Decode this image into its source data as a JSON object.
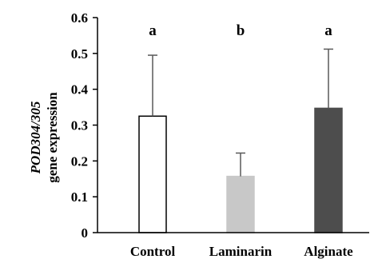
{
  "chart_data": {
    "type": "bar",
    "ylabel_lines": [
      "POD304/305",
      "gene expression"
    ],
    "categories": [
      "Control",
      "Laminarin",
      "Alginate"
    ],
    "values": [
      0.325,
      0.157,
      0.347
    ],
    "error_upper": [
      0.495,
      0.222,
      0.512
    ],
    "significance": [
      "a",
      "b",
      "a"
    ],
    "bar_fill": [
      "#ffffff",
      "#c8c8c8",
      "#4d4d4d"
    ],
    "bar_stroke": [
      "#000000",
      "#c8c8c8",
      "#4d4d4d"
    ],
    "ylim": [
      0,
      0.6
    ],
    "ytick_step": 0.1,
    "ytick_labels": [
      "0",
      "0.1",
      "0.2",
      "0.3",
      "0.4",
      "0.5",
      "0.6"
    ],
    "grid": false,
    "legend": "none"
  }
}
